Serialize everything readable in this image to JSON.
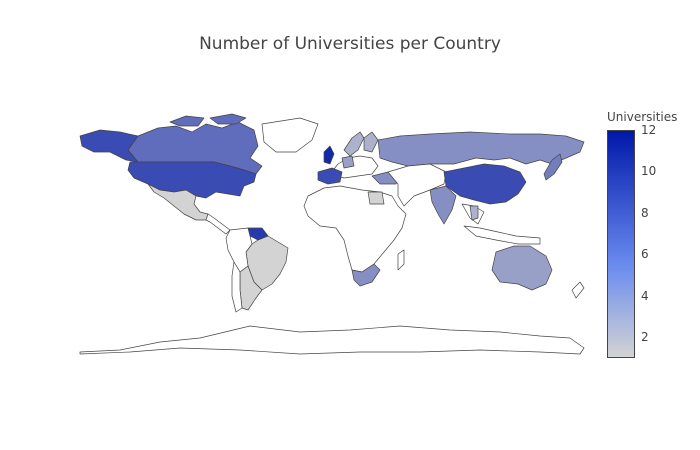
{
  "title": "Number of Universities per Country",
  "colorbar": {
    "title": "Universities",
    "ticks": [
      12,
      10,
      8,
      6,
      4,
      2
    ],
    "min": 1,
    "max": 12,
    "colors": [
      "#d3d3d3",
      "#0018a8"
    ]
  },
  "map_data": {
    "type": "choropleth",
    "projection": "natural earth",
    "countries": [
      {
        "name": "United States",
        "value": 9
      },
      {
        "name": "Canada",
        "value": 7
      },
      {
        "name": "United Kingdom",
        "value": 11
      },
      {
        "name": "Russia",
        "value": 5
      },
      {
        "name": "China",
        "value": 9
      },
      {
        "name": "Australia",
        "value": 4
      },
      {
        "name": "India",
        "value": 5
      },
      {
        "name": "Japan",
        "value": 6
      },
      {
        "name": "Mexico",
        "value": 1
      },
      {
        "name": "Brazil",
        "value": 1
      },
      {
        "name": "Argentina",
        "value": 1
      },
      {
        "name": "South Africa",
        "value": 5
      },
      {
        "name": "Germany",
        "value": 4
      },
      {
        "name": "France",
        "value": 9
      },
      {
        "name": "Sweden",
        "value": 3
      },
      {
        "name": "Finland",
        "value": 3
      },
      {
        "name": "Turkey",
        "value": 5
      },
      {
        "name": "Egypt",
        "value": 1
      },
      {
        "name": "Thailand",
        "value": 3
      },
      {
        "name": "Venezuela",
        "value": 10
      }
    ]
  }
}
